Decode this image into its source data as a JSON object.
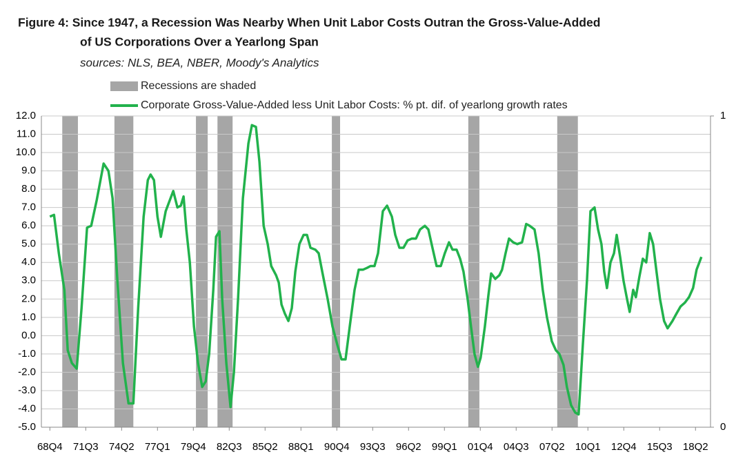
{
  "chart_data": {
    "type": "line",
    "title": [
      "Figure 4: Since 1947,  a Recession Was Nearby When Unit Labor Costs Outran the Gross-Value-Added",
      "of US Corporations Over a Yearlong Span"
    ],
    "subtitle": "sources: NLS, BEA, NBER, Moody's Analytics",
    "recessions_label": "Recessions are shaded",
    "recessions_color": "#a6a6a6",
    "recessions": [
      [
        1969.7,
        1970.9
      ],
      [
        1973.7,
        1975.15
      ],
      [
        1979.95,
        1980.85
      ],
      [
        1981.6,
        1982.76
      ],
      [
        1990.37,
        1991.0
      ],
      [
        2000.83,
        2001.68
      ],
      [
        2007.65,
        2009.23
      ]
    ],
    "series": [
      {
        "name": "Corporate Gross-Value-Added less Unit Labor Costs: % pt. dif. of yearlong growth rates",
        "color": "#22b24c",
        "x": [
          1968.75,
          1969.07,
          1969.44,
          1969.86,
          1970.12,
          1970.44,
          1970.81,
          1971.18,
          1971.6,
          1971.92,
          1972.34,
          1972.87,
          1973.24,
          1973.56,
          1973.93,
          1974.35,
          1974.78,
          1975.15,
          1975.52,
          1975.94,
          1976.26,
          1976.47,
          1976.73,
          1977.0,
          1977.26,
          1977.63,
          1977.95,
          1978.21,
          1978.53,
          1978.79,
          1979.0,
          1979.21,
          1979.48,
          1979.8,
          1980.11,
          1980.43,
          1980.7,
          1980.96,
          1981.28,
          1981.49,
          1981.75,
          1981.96,
          1982.28,
          1982.6,
          1982.86,
          1983.18,
          1983.55,
          1983.97,
          1984.24,
          1984.55,
          1984.82,
          1985.14,
          1985.45,
          1985.72,
          1986.09,
          1986.3,
          1986.51,
          1986.77,
          1987.04,
          1987.3,
          1987.57,
          1987.88,
          1988.2,
          1988.46,
          1988.73,
          1989.1,
          1989.36,
          1989.63,
          1990.05,
          1990.42,
          1990.79,
          1991.11,
          1991.42,
          1991.74,
          1992.11,
          1992.43,
          1992.75,
          1993.06,
          1993.33,
          1993.64,
          1993.91,
          1994.28,
          1994.6,
          1994.97,
          1995.23,
          1995.55,
          1995.86,
          1996.18,
          1996.5,
          1996.82,
          1997.13,
          1997.5,
          1997.77,
          1998.08,
          1998.4,
          1998.72,
          1999.03,
          1999.35,
          1999.62,
          1999.93,
          2000.2,
          2000.46,
          2000.78,
          2001.04,
          2001.31,
          2001.57,
          2001.78,
          2002.1,
          2002.37,
          2002.58,
          2002.9,
          2003.21,
          2003.42,
          2003.69,
          2003.95,
          2004.27,
          2004.58,
          2004.95,
          2005.27,
          2005.54,
          2005.91,
          2006.22,
          2006.54,
          2006.86,
          2007.23,
          2007.55,
          2007.81,
          2008.13,
          2008.39,
          2008.71,
          2009.03,
          2009.29,
          2009.61,
          2009.93,
          2010.2,
          2010.51,
          2010.78,
          2011.04,
          2011.25,
          2011.46,
          2011.73,
          2012.0,
          2012.21,
          2012.47,
          2012.73,
          2013.0,
          2013.2,
          2013.47,
          2013.68,
          2013.94,
          2014.21,
          2014.47,
          2014.74,
          2015.0,
          2015.26,
          2015.53,
          2015.84,
          2016.11,
          2016.48,
          2016.79,
          2017.11,
          2017.43,
          2017.75,
          2018.06,
          2018.33,
          2018.7
        ],
        "values": [
          6.5,
          6.6,
          4.5,
          2.5,
          -0.8,
          -1.5,
          -1.8,
          1.5,
          5.9,
          6.0,
          7.4,
          9.4,
          9.0,
          7.5,
          3.0,
          -1.5,
          -3.7,
          -3.7,
          1.5,
          6.5,
          8.5,
          8.8,
          8.5,
          6.5,
          5.4,
          6.8,
          7.4,
          7.9,
          7.0,
          7.1,
          7.6,
          5.8,
          4.0,
          0.5,
          -1.5,
          -2.8,
          -2.5,
          -1.0,
          2.5,
          5.4,
          5.7,
          2.0,
          -1.5,
          -3.9,
          -2.0,
          2.0,
          7.5,
          10.5,
          11.5,
          11.4,
          9.5,
          6.0,
          5.0,
          3.8,
          3.3,
          2.9,
          1.7,
          1.2,
          0.8,
          1.5,
          3.5,
          5.0,
          5.5,
          5.5,
          4.8,
          4.7,
          4.5,
          3.5,
          2.0,
          0.5,
          -0.5,
          -1.3,
          -1.3,
          0.5,
          2.5,
          3.6,
          3.6,
          3.7,
          3.8,
          3.8,
          4.5,
          6.8,
          7.1,
          6.5,
          5.5,
          4.8,
          4.8,
          5.2,
          5.3,
          5.3,
          5.8,
          6.0,
          5.8,
          4.8,
          3.8,
          3.8,
          4.5,
          5.1,
          4.7,
          4.7,
          4.2,
          3.5,
          2.0,
          0.5,
          -1.0,
          -1.7,
          -1.2,
          0.5,
          2.2,
          3.4,
          3.1,
          3.3,
          3.6,
          4.5,
          5.3,
          5.1,
          5.0,
          5.1,
          6.1,
          6.0,
          5.8,
          4.5,
          2.5,
          1.0,
          -0.3,
          -0.8,
          -1.0,
          -1.6,
          -2.8,
          -3.8,
          -4.2,
          -4.3,
          -0.5,
          3.0,
          6.8,
          7.0,
          5.8,
          5.0,
          3.5,
          2.6,
          4.0,
          4.5,
          5.5,
          4.3,
          3.0,
          2.0,
          1.3,
          2.5,
          2.1,
          3.2,
          4.2,
          4.0,
          5.6,
          5.0,
          3.5,
          2.0,
          0.8,
          0.4,
          0.8,
          1.2,
          1.6,
          1.8,
          2.1,
          2.6,
          3.6,
          4.3
        ]
      }
    ],
    "xlim": [
      1968.1,
      2019.4
    ],
    "xticks": [
      {
        "value": 1968.75,
        "label": "68Q4"
      },
      {
        "value": 1971.5,
        "label": "71Q3"
      },
      {
        "value": 1974.25,
        "label": "74Q2"
      },
      {
        "value": 1977.0,
        "label": "77Q1"
      },
      {
        "value": 1979.75,
        "label": "79Q4"
      },
      {
        "value": 1982.5,
        "label": "82Q3"
      },
      {
        "value": 1985.25,
        "label": "85Q2"
      },
      {
        "value": 1988.0,
        "label": "88Q1"
      },
      {
        "value": 1990.75,
        "label": "90Q4"
      },
      {
        "value": 1993.5,
        "label": "93Q3"
      },
      {
        "value": 1996.25,
        "label": "96Q2"
      },
      {
        "value": 1999.0,
        "label": "99Q1"
      },
      {
        "value": 2001.75,
        "label": "01Q4"
      },
      {
        "value": 2004.5,
        "label": "04Q3"
      },
      {
        "value": 2007.25,
        "label": "07Q2"
      },
      {
        "value": 2010.0,
        "label": "10Q1"
      },
      {
        "value": 2012.75,
        "label": "12Q4"
      },
      {
        "value": 2015.5,
        "label": "15Q3"
      },
      {
        "value": 2018.25,
        "label": "18Q2"
      }
    ],
    "ylim": [
      -5,
      12
    ],
    "yticks": [
      {
        "value": 12,
        "label": "12.0"
      },
      {
        "value": 11,
        "label": "11.0"
      },
      {
        "value": 10,
        "label": "10.0"
      },
      {
        "value": 9,
        "label": "9.0"
      },
      {
        "value": 8,
        "label": "8.0"
      },
      {
        "value": 7,
        "label": "7.0"
      },
      {
        "value": 6,
        "label": "6.0"
      },
      {
        "value": 5,
        "label": "5.0"
      },
      {
        "value": 4,
        "label": "4.0"
      },
      {
        "value": 3,
        "label": "3.0"
      },
      {
        "value": 2,
        "label": "2.0"
      },
      {
        "value": 1,
        "label": "1.0"
      },
      {
        "value": 0,
        "label": "0.0"
      },
      {
        "value": -1,
        "label": "-1.0"
      },
      {
        "value": -2,
        "label": "-2.0"
      },
      {
        "value": -3,
        "label": "-3.0"
      },
      {
        "value": -4,
        "label": "-4.0"
      },
      {
        "value": -5,
        "label": "-5.0"
      }
    ],
    "y2lim": [
      0,
      1
    ],
    "y2ticks": [
      0,
      1
    ],
    "grid": true
  }
}
